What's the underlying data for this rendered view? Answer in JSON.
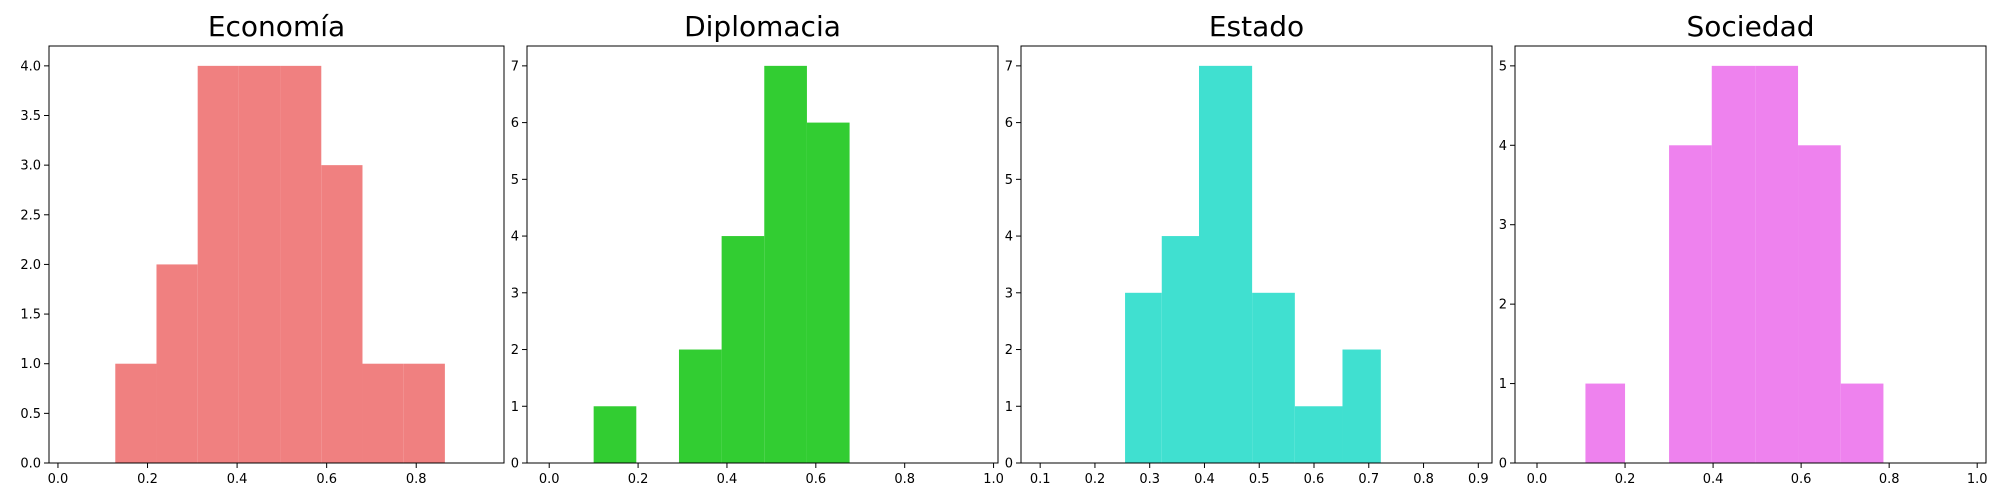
{
  "chart_data": [
    {
      "type": "bar",
      "title": "Economía",
      "color": "#F08080",
      "xlim": [
        -0.02,
        0.996
      ],
      "ylim": [
        0,
        4.2
      ],
      "xticks": [
        0.0,
        0.2,
        0.4,
        0.6,
        0.8
      ],
      "xtick_labels": [
        "0.0",
        "0.2",
        "0.4",
        "0.6",
        "0.8"
      ],
      "yticks": [
        0.0,
        0.5,
        1.0,
        1.5,
        2.0,
        2.5,
        3.0,
        3.5,
        4.0
      ],
      "ytick_labels": [
        "0.0",
        "0.5",
        "1.0",
        "1.5",
        "2.0",
        "2.5",
        "3.0",
        "3.5",
        "4.0"
      ],
      "bins": [
        {
          "x0": 0.128,
          "x1": 0.22,
          "count": 1
        },
        {
          "x0": 0.22,
          "x1": 0.312,
          "count": 2
        },
        {
          "x0": 0.312,
          "x1": 0.404,
          "count": 4
        },
        {
          "x0": 0.404,
          "x1": 0.496,
          "count": 4
        },
        {
          "x0": 0.496,
          "x1": 0.588,
          "count": 4
        },
        {
          "x0": 0.588,
          "x1": 0.68,
          "count": 3
        },
        {
          "x0": 0.68,
          "x1": 0.772,
          "count": 1
        },
        {
          "x0": 0.772,
          "x1": 0.864,
          "count": 1
        }
      ]
    },
    {
      "type": "bar",
      "title": "Diplomacia",
      "color": "#32CD32",
      "xlim": [
        -0.05,
        1.01
      ],
      "ylim": [
        0,
        7.35
      ],
      "xticks": [
        0.0,
        0.2,
        0.4,
        0.6,
        0.8,
        1.0
      ],
      "xtick_labels": [
        "0.0",
        "0.2",
        "0.4",
        "0.6",
        "0.8",
        "1.0"
      ],
      "yticks": [
        0,
        1,
        2,
        3,
        4,
        5,
        6,
        7
      ],
      "ytick_labels": [
        "0",
        "1",
        "2",
        "3",
        "4",
        "5",
        "6",
        "7"
      ],
      "bins": [
        {
          "x0": 0.1,
          "x1": 0.196,
          "count": 1
        },
        {
          "x0": 0.196,
          "x1": 0.292,
          "count": 0
        },
        {
          "x0": 0.292,
          "x1": 0.388,
          "count": 2
        },
        {
          "x0": 0.388,
          "x1": 0.484,
          "count": 4
        },
        {
          "x0": 0.484,
          "x1": 0.58,
          "count": 7
        },
        {
          "x0": 0.58,
          "x1": 0.676,
          "count": 6
        }
      ]
    },
    {
      "type": "bar",
      "title": "Estado",
      "color": "#40E0D0",
      "xlim": [
        0.065,
        0.925
      ],
      "ylim": [
        0,
        7.35
      ],
      "xticks": [
        0.1,
        0.2,
        0.3,
        0.4,
        0.5,
        0.6,
        0.7,
        0.8,
        0.9
      ],
      "xtick_labels": [
        "0.1",
        "0.2",
        "0.3",
        "0.4",
        "0.5",
        "0.6",
        "0.7",
        "0.8",
        "0.9"
      ],
      "yticks": [
        0,
        1,
        2,
        3,
        4,
        5,
        6,
        7
      ],
      "ytick_labels": [
        "0",
        "1",
        "2",
        "3",
        "4",
        "5",
        "6",
        "7"
      ],
      "bins": [
        {
          "x0": 0.255,
          "x1": 0.322,
          "count": 3
        },
        {
          "x0": 0.322,
          "x1": 0.39,
          "count": 4
        },
        {
          "x0": 0.39,
          "x1": 0.487,
          "count": 7
        },
        {
          "x0": 0.487,
          "x1": 0.565,
          "count": 3
        },
        {
          "x0": 0.565,
          "x1": 0.652,
          "count": 1
        },
        {
          "x0": 0.652,
          "x1": 0.722,
          "count": 2
        }
      ]
    },
    {
      "type": "bar",
      "title": "Sociedad",
      "color": "#EE82EE",
      "xlim": [
        -0.05,
        1.02
      ],
      "ylim": [
        0,
        5.25
      ],
      "xticks": [
        0.0,
        0.2,
        0.4,
        0.6,
        0.8,
        1.0
      ],
      "xtick_labels": [
        "0.0",
        "0.2",
        "0.4",
        "0.6",
        "0.8",
        "1.0"
      ],
      "yticks": [
        0,
        1,
        2,
        3,
        4,
        5
      ],
      "ytick_labels": [
        "0",
        "1",
        "2",
        "3",
        "4",
        "5"
      ],
      "bins": [
        {
          "x0": 0.11,
          "x1": 0.2,
          "count": 1
        },
        {
          "x0": 0.2,
          "x1": 0.3,
          "count": 0
        },
        {
          "x0": 0.3,
          "x1": 0.397,
          "count": 4
        },
        {
          "x0": 0.397,
          "x1": 0.497,
          "count": 5
        },
        {
          "x0": 0.497,
          "x1": 0.593,
          "count": 5
        },
        {
          "x0": 0.593,
          "x1": 0.69,
          "count": 4
        },
        {
          "x0": 0.69,
          "x1": 0.787,
          "count": 1
        }
      ]
    }
  ]
}
